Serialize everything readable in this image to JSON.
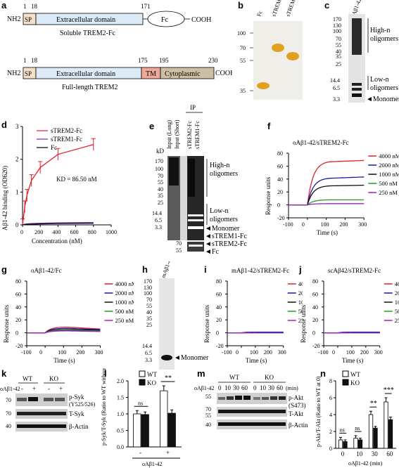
{
  "panels": {
    "a": {
      "letter": "a",
      "soluble": {
        "num_start": "1",
        "num_sp": "18",
        "num_end": "171",
        "nh2": "NH2",
        "sp": "SP",
        "ecd": "Extracellular domain",
        "fc": "Fc",
        "cooh": "COOH",
        "caption": "Soluble TREM2-Fc"
      },
      "full": {
        "num_start": "1",
        "num_sp": "18",
        "num_tm": "175",
        "num_cyto": "195",
        "num_end": "230",
        "nh2": "NH2",
        "sp": "SP",
        "ecd": "Extracellular domain",
        "tm": "TM",
        "cyto": "Cytoplasmic",
        "cooh": "COOH",
        "caption": "Full-length TREM2"
      }
    },
    "b": {
      "letter": "b",
      "lanes": [
        "Fc",
        "sTREM1-Fc",
        "sTREM2-Fc"
      ],
      "markers": [
        "100",
        "70",
        "55",
        "35"
      ],
      "colors": {
        "bg": "#eeeeea",
        "band": "#e0a020"
      }
    },
    "c": {
      "letter": "c",
      "lane": "Aβ1-42",
      "markers": [
        "170",
        "130",
        "100",
        "70",
        "55",
        "40",
        "35",
        "25",
        "14.4",
        "6.5",
        "3.3"
      ],
      "labels": {
        "high": "High-n\noligomers",
        "low": "Low-n\noligomers",
        "mono": "◄Monomer"
      }
    },
    "d": {
      "letter": "d",
      "legend": [
        "sTREM2-Fc",
        "sTREM1-Fc",
        "Fc"
      ],
      "kd": "KD = 86.50 nM",
      "ylabel": "Aβ1-42 binding (OD620)",
      "xlabel": "Concentration (nM)"
    },
    "e": {
      "letter": "e",
      "lanes": [
        "Input (Long)",
        "Input (Short)",
        "sTREM2-Fc",
        "sTREM1-Fc"
      ],
      "ip": "IP",
      "kd": "kD",
      "markers": [
        "170",
        "100",
        "70",
        "55",
        "40",
        "35",
        "25",
        "14.4",
        "6.5",
        "3.3"
      ],
      "fc_markers": [
        "70",
        "55"
      ],
      "labels": {
        "high": "High-n\noligomers",
        "low": "Low-n\noligomers",
        "mono": "◄Monomer",
        "s1": "◄sTREM1-Fc",
        "s2": "◄sTREM2-Fc",
        "fc": "◄Fc"
      }
    },
    "f": {
      "letter": "f",
      "title": "oAβ1-42/sTREM2-Fc"
    },
    "g": {
      "letter": "g",
      "title": "oAβ1-42/Fc"
    },
    "h": {
      "letter": "h",
      "lane": "mAβ1-42",
      "markers": [
        "170",
        "130",
        "100",
        "70",
        "55",
        "40",
        "35",
        "25",
        "14.4",
        "6.5",
        "3.3"
      ],
      "mono": "◄Monomer"
    },
    "i": {
      "letter": "i",
      "title": "mAβ1-42/sTREM2-Fc"
    },
    "j": {
      "letter": "j",
      "title": "scAβ42/sTREM2-Fc"
    },
    "spr": {
      "legend": [
        "4000 nM",
        "2000 nM",
        "1000 nM",
        "500 nM",
        "250 nM"
      ],
      "colors": [
        "#e0202a",
        "#1a1aa0",
        "#111111",
        "#20a020",
        "#a020c0"
      ],
      "ylabel": "Response units",
      "xlabel": "Time (s)",
      "yticks": [
        "80",
        "60",
        "40",
        "20",
        "0",
        "-20"
      ],
      "xticks": [
        "-100",
        "0",
        "100",
        "200",
        "300"
      ]
    },
    "k": {
      "letter": "k",
      "groups": [
        "WT",
        "KO"
      ],
      "treat": "oAβ1-42",
      "signs": [
        "-",
        "+",
        "-",
        "+"
      ],
      "markers": [
        "70",
        "70",
        "40"
      ],
      "labels": [
        "p-Syk",
        "(Y525/526)",
        "T-Syk",
        "β-Actin"
      ]
    },
    "l": {
      "letter": "l",
      "legend": [
        "WT",
        "KO"
      ],
      "ylabel": "p-Syk/T-Syk (Ratio to WT without Aβ)",
      "yticks": [
        "2.0",
        "1.5",
        "1.0",
        "0.5",
        "0.0"
      ],
      "signs": [
        "-",
        "+"
      ],
      "xlabel": "oAβ1-42",
      "sig": [
        "ns",
        "**"
      ]
    },
    "m": {
      "letter": "m",
      "groups": [
        "WT",
        "KO"
      ],
      "treat": "oAβ1-42",
      "times": [
        "0",
        "10",
        "30",
        "60",
        "0",
        "10",
        "30",
        "60"
      ],
      "unit": "(min)",
      "markers": [
        "55",
        "70",
        "55",
        "40"
      ],
      "labels": [
        "p-Akt",
        "(S473)",
        "T-Akt",
        "β-Actin"
      ]
    },
    "n": {
      "letter": "n",
      "legend": [
        "WT",
        "KO"
      ],
      "ylabel": "p-Akt/T-Akt (Ratio to WT at 0)",
      "yticks": [
        "8",
        "6",
        "4",
        "2",
        "0"
      ],
      "xticks": [
        "0",
        "10",
        "30",
        "60"
      ],
      "xlabel": "oAβ1-42 (min)",
      "sig": [
        "ns",
        "ns",
        "**",
        "***"
      ]
    }
  },
  "chart_data": [
    {
      "panel": "d",
      "type": "line",
      "x": [
        0,
        25,
        50,
        100,
        200,
        400,
        800
      ],
      "series": [
        {
          "name": "sTREM2-Fc",
          "values": [
            0.0,
            0.55,
            0.9,
            1.35,
            1.75,
            2.15,
            2.45
          ]
        },
        {
          "name": "sTREM1-Fc",
          "values": [
            0.0,
            0.02,
            0.03,
            0.04,
            0.05,
            0.06,
            0.07
          ]
        },
        {
          "name": "Fc",
          "values": [
            0.0,
            0.01,
            0.02,
            0.02,
            0.03,
            0.04,
            0.05
          ]
        }
      ],
      "xlim": [
        0,
        1000
      ],
      "ylim": [
        0,
        3
      ]
    },
    {
      "panel": "f",
      "type": "line",
      "title": "oAβ1-42/sTREM2-Fc",
      "series": [
        {
          "name": "4000 nM",
          "plateau": 68,
          "end": 70
        },
        {
          "name": "2000 nM",
          "plateau": 42,
          "end": 44
        },
        {
          "name": "1000 nM",
          "plateau": 30,
          "end": 31
        },
        {
          "name": "500 nM",
          "plateau": 8,
          "end": 8
        },
        {
          "name": "250 nM",
          "plateau": 2,
          "end": 2
        }
      ],
      "xlim": [
        -100,
        300
      ],
      "ylim": [
        -20,
        80
      ]
    },
    {
      "panel": "g",
      "type": "line",
      "title": "oAβ1-42/Fc",
      "series": [
        {
          "name": "4000 nM",
          "plateau": 9,
          "end": 6
        },
        {
          "name": "2000 nM",
          "plateau": 7,
          "end": 5
        },
        {
          "name": "1000 nM",
          "plateau": 5,
          "end": 4
        },
        {
          "name": "500 nM",
          "plateau": 4,
          "end": 3
        },
        {
          "name": "250 nM",
          "plateau": 3,
          "end": 2
        }
      ],
      "xlim": [
        -100,
        300
      ],
      "ylim": [
        -20,
        80
      ]
    },
    {
      "panel": "i",
      "type": "line",
      "title": "mAβ1-42/sTREM2-Fc",
      "series": [
        {
          "name": "4000 nM",
          "plateau": 1,
          "end": 1
        },
        {
          "name": "2000 nM",
          "plateau": 1,
          "end": 1
        },
        {
          "name": "1000 nM",
          "plateau": 0,
          "end": 0
        },
        {
          "name": "500 nM",
          "plateau": 0,
          "end": 0
        },
        {
          "name": "250 nM",
          "plateau": 0,
          "end": 0
        }
      ],
      "xlim": [
        -100,
        300
      ],
      "ylim": [
        -20,
        80
      ]
    },
    {
      "panel": "j",
      "type": "line",
      "title": "scAβ42/sTREM2-Fc",
      "series": [
        {
          "name": "4000 nM",
          "plateau": 1,
          "end": 1
        },
        {
          "name": "2000 nM",
          "plateau": 1,
          "end": 1
        },
        {
          "name": "1000 nM",
          "plateau": 0,
          "end": 0
        },
        {
          "name": "500 nM",
          "plateau": 0,
          "end": 0
        },
        {
          "name": "250 nM",
          "plateau": 0,
          "end": 0
        }
      ],
      "xlim": [
        -100,
        300
      ],
      "ylim": [
        -20,
        80
      ]
    },
    {
      "panel": "l",
      "type": "bar",
      "categories": [
        "-",
        "+"
      ],
      "series": [
        {
          "name": "WT",
          "values": [
            1.0,
            1.7
          ],
          "err": [
            0.1,
            0.15
          ]
        },
        {
          "name": "KO",
          "values": [
            0.98,
            1.02
          ],
          "err": [
            0.08,
            0.1
          ]
        }
      ],
      "ylim": [
        0,
        2
      ]
    },
    {
      "panel": "n",
      "type": "bar",
      "categories": [
        "0",
        "10",
        "30",
        "60"
      ],
      "series": [
        {
          "name": "WT",
          "values": [
            1.0,
            1.2,
            4.0,
            5.5
          ],
          "err": [
            0.3,
            0.3,
            0.4,
            0.5
          ]
        },
        {
          "name": "KO",
          "values": [
            0.8,
            1.0,
            2.4,
            3.4
          ],
          "err": [
            0.2,
            0.2,
            0.2,
            0.3
          ]
        }
      ],
      "ylim": [
        0,
        8
      ]
    }
  ]
}
